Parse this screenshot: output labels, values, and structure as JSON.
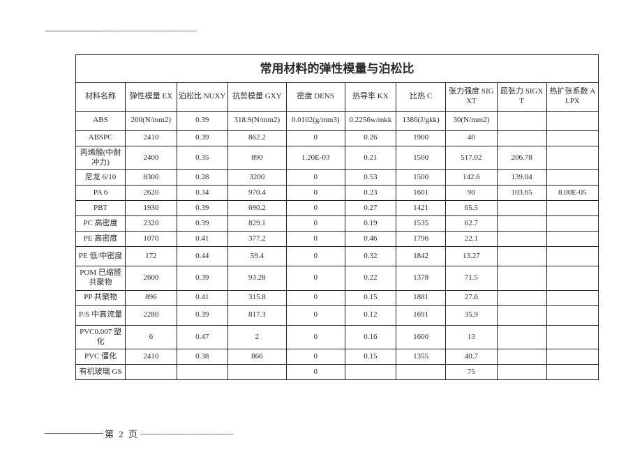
{
  "title": "常用材料的弹性模量与泊松比",
  "headers": [
    "材料名称",
    "弹性模量 EX",
    "泊松比 NUXY",
    "抗剪模量 GXY",
    "密度 DENS",
    "热导率 KX",
    "比热 C",
    "张力强度 SIGXT",
    "屈张力 SIGXT",
    "热扩张系数 ALPX"
  ],
  "rows": [
    {
      "tall": true,
      "cells": [
        "ABS",
        "200(N/mm2)",
        "0.39",
        "318.9(N/mm2)",
        "0.0102(g/mm3)",
        "0.2256w/mkk",
        "1386(J/gkk)",
        "30(N/mm2)",
        "",
        ""
      ]
    },
    {
      "tall": false,
      "cells": [
        "ABSPC",
        "2410",
        "0.39",
        "862.2",
        "0",
        "0.26",
        "1900",
        "40",
        "",
        ""
      ]
    },
    {
      "tall": true,
      "cells": [
        "丙烯酸(中耐冲力)",
        "2400",
        "0.35",
        "890",
        "1.20E-03",
        "0.21",
        "1500",
        "517.02",
        "206.78",
        ""
      ]
    },
    {
      "tall": false,
      "cells": [
        "尼龙 6/10",
        "8300",
        "0.28",
        "3200",
        "0",
        "0.53",
        "1500",
        "142.6",
        "139.04",
        ""
      ]
    },
    {
      "tall": false,
      "cells": [
        "PA 6",
        "2620",
        "0.34",
        "970.4",
        "0",
        "0.23",
        "1601",
        "90",
        "103.65",
        "8.00E-05"
      ]
    },
    {
      "tall": false,
      "cells": [
        "PBT",
        "1930",
        "0.39",
        "690.2",
        "0",
        "0.27",
        "1421",
        "65.5",
        "",
        ""
      ]
    },
    {
      "tall": false,
      "cells": [
        "PC 高密度",
        "2320",
        "0.39",
        "829.1",
        "0",
        "0.19",
        "1535",
        "62.7",
        "",
        ""
      ]
    },
    {
      "tall": false,
      "cells": [
        "PE 高密度",
        "1070",
        "0.41",
        "377.2",
        "0",
        "0.46",
        "1796",
        "22.1",
        "",
        ""
      ]
    },
    {
      "tall": true,
      "cells": [
        "PE 低/中密度",
        "172",
        "0.44",
        "59.4",
        "0",
        "0.32",
        "1842",
        "13.27",
        "",
        ""
      ]
    },
    {
      "tall": true,
      "cells": [
        "POM 已缩醛共聚物",
        "2600",
        "0.39",
        "93.28",
        "0",
        "0.22",
        "1378",
        "71.5",
        "",
        ""
      ]
    },
    {
      "tall": false,
      "cells": [
        "PP 共聚物",
        "896",
        "0.41",
        "315.8",
        "0",
        "0.15",
        "1881",
        "27.6",
        "",
        ""
      ]
    },
    {
      "tall": true,
      "cells": [
        "P/S 中高流量",
        "2280",
        "0.39",
        "817.3",
        "0",
        "0.12",
        "1691",
        "35.9",
        "",
        ""
      ]
    },
    {
      "tall": true,
      "cells": [
        "PVC0.007 塑化",
        "6",
        "0.47",
        "2",
        "0",
        "0.16",
        "1600",
        "13",
        "",
        ""
      ]
    },
    {
      "tall": false,
      "cells": [
        "PVC 僵化",
        "2410",
        "0.38",
        "866",
        "0",
        "0.15",
        "1355",
        "40.7",
        "",
        ""
      ]
    },
    {
      "tall": false,
      "cells": [
        "有机玻璃 GS",
        "",
        "",
        "",
        "0",
        "",
        "",
        "75",
        "",
        ""
      ]
    }
  ],
  "top_dots": "------------------------------------------",
  "footer_page": "第 2 页",
  "footer_dots": "------------------------------------------",
  "colors": {
    "text": "#2a2a2a",
    "border": "#222222",
    "divider": "#666666",
    "bg": "#ffffff"
  },
  "typography": {
    "base_font": "SimSun",
    "title_size_pt": 17,
    "cell_size_pt": 11
  }
}
